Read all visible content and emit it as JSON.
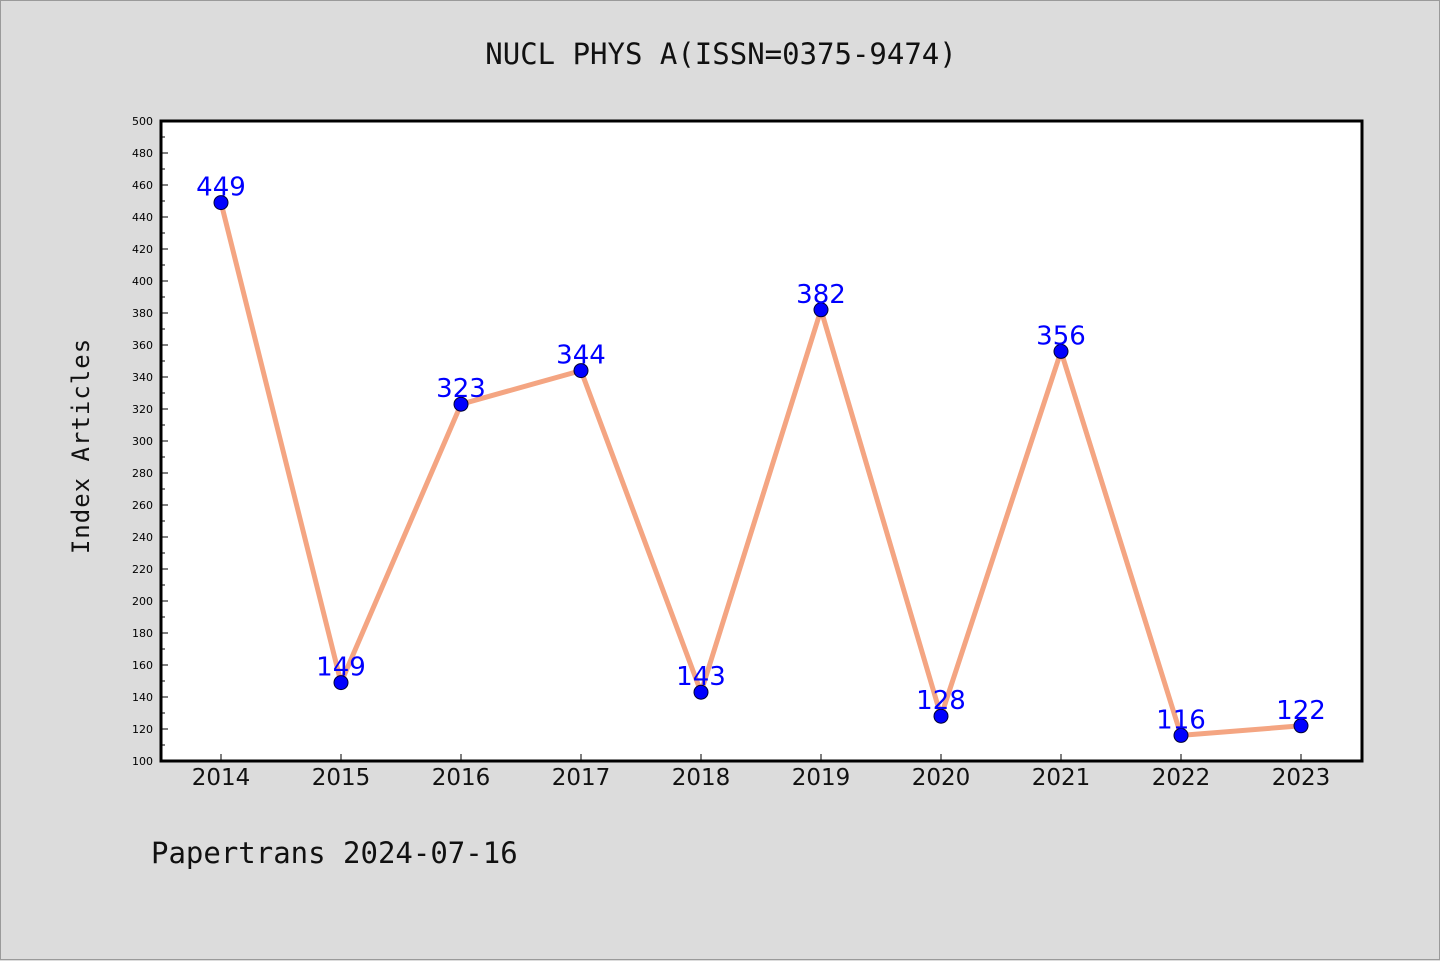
{
  "chart_data": {
    "type": "line",
    "title": "NUCL PHYS A(ISSN=0375-9474)",
    "xlabel": "",
    "ylabel": "Index Articles",
    "categories": [
      "2014",
      "2015",
      "2016",
      "2017",
      "2018",
      "2019",
      "2020",
      "2021",
      "2022",
      "2023"
    ],
    "values": [
      449,
      149,
      323,
      344,
      143,
      382,
      128,
      356,
      116,
      122
    ],
    "ylim": [
      100,
      500
    ],
    "yticks": [
      100,
      120,
      140,
      160,
      180,
      200,
      220,
      240,
      260,
      280,
      300,
      320,
      340,
      360,
      380,
      400,
      420,
      440,
      460,
      480,
      500
    ],
    "grid": false,
    "legend": "none",
    "line_color": "#f4a582",
    "marker_color": "#0000ff",
    "label_color": "#0000ff"
  },
  "footer": "Papertrans 2024-07-16"
}
